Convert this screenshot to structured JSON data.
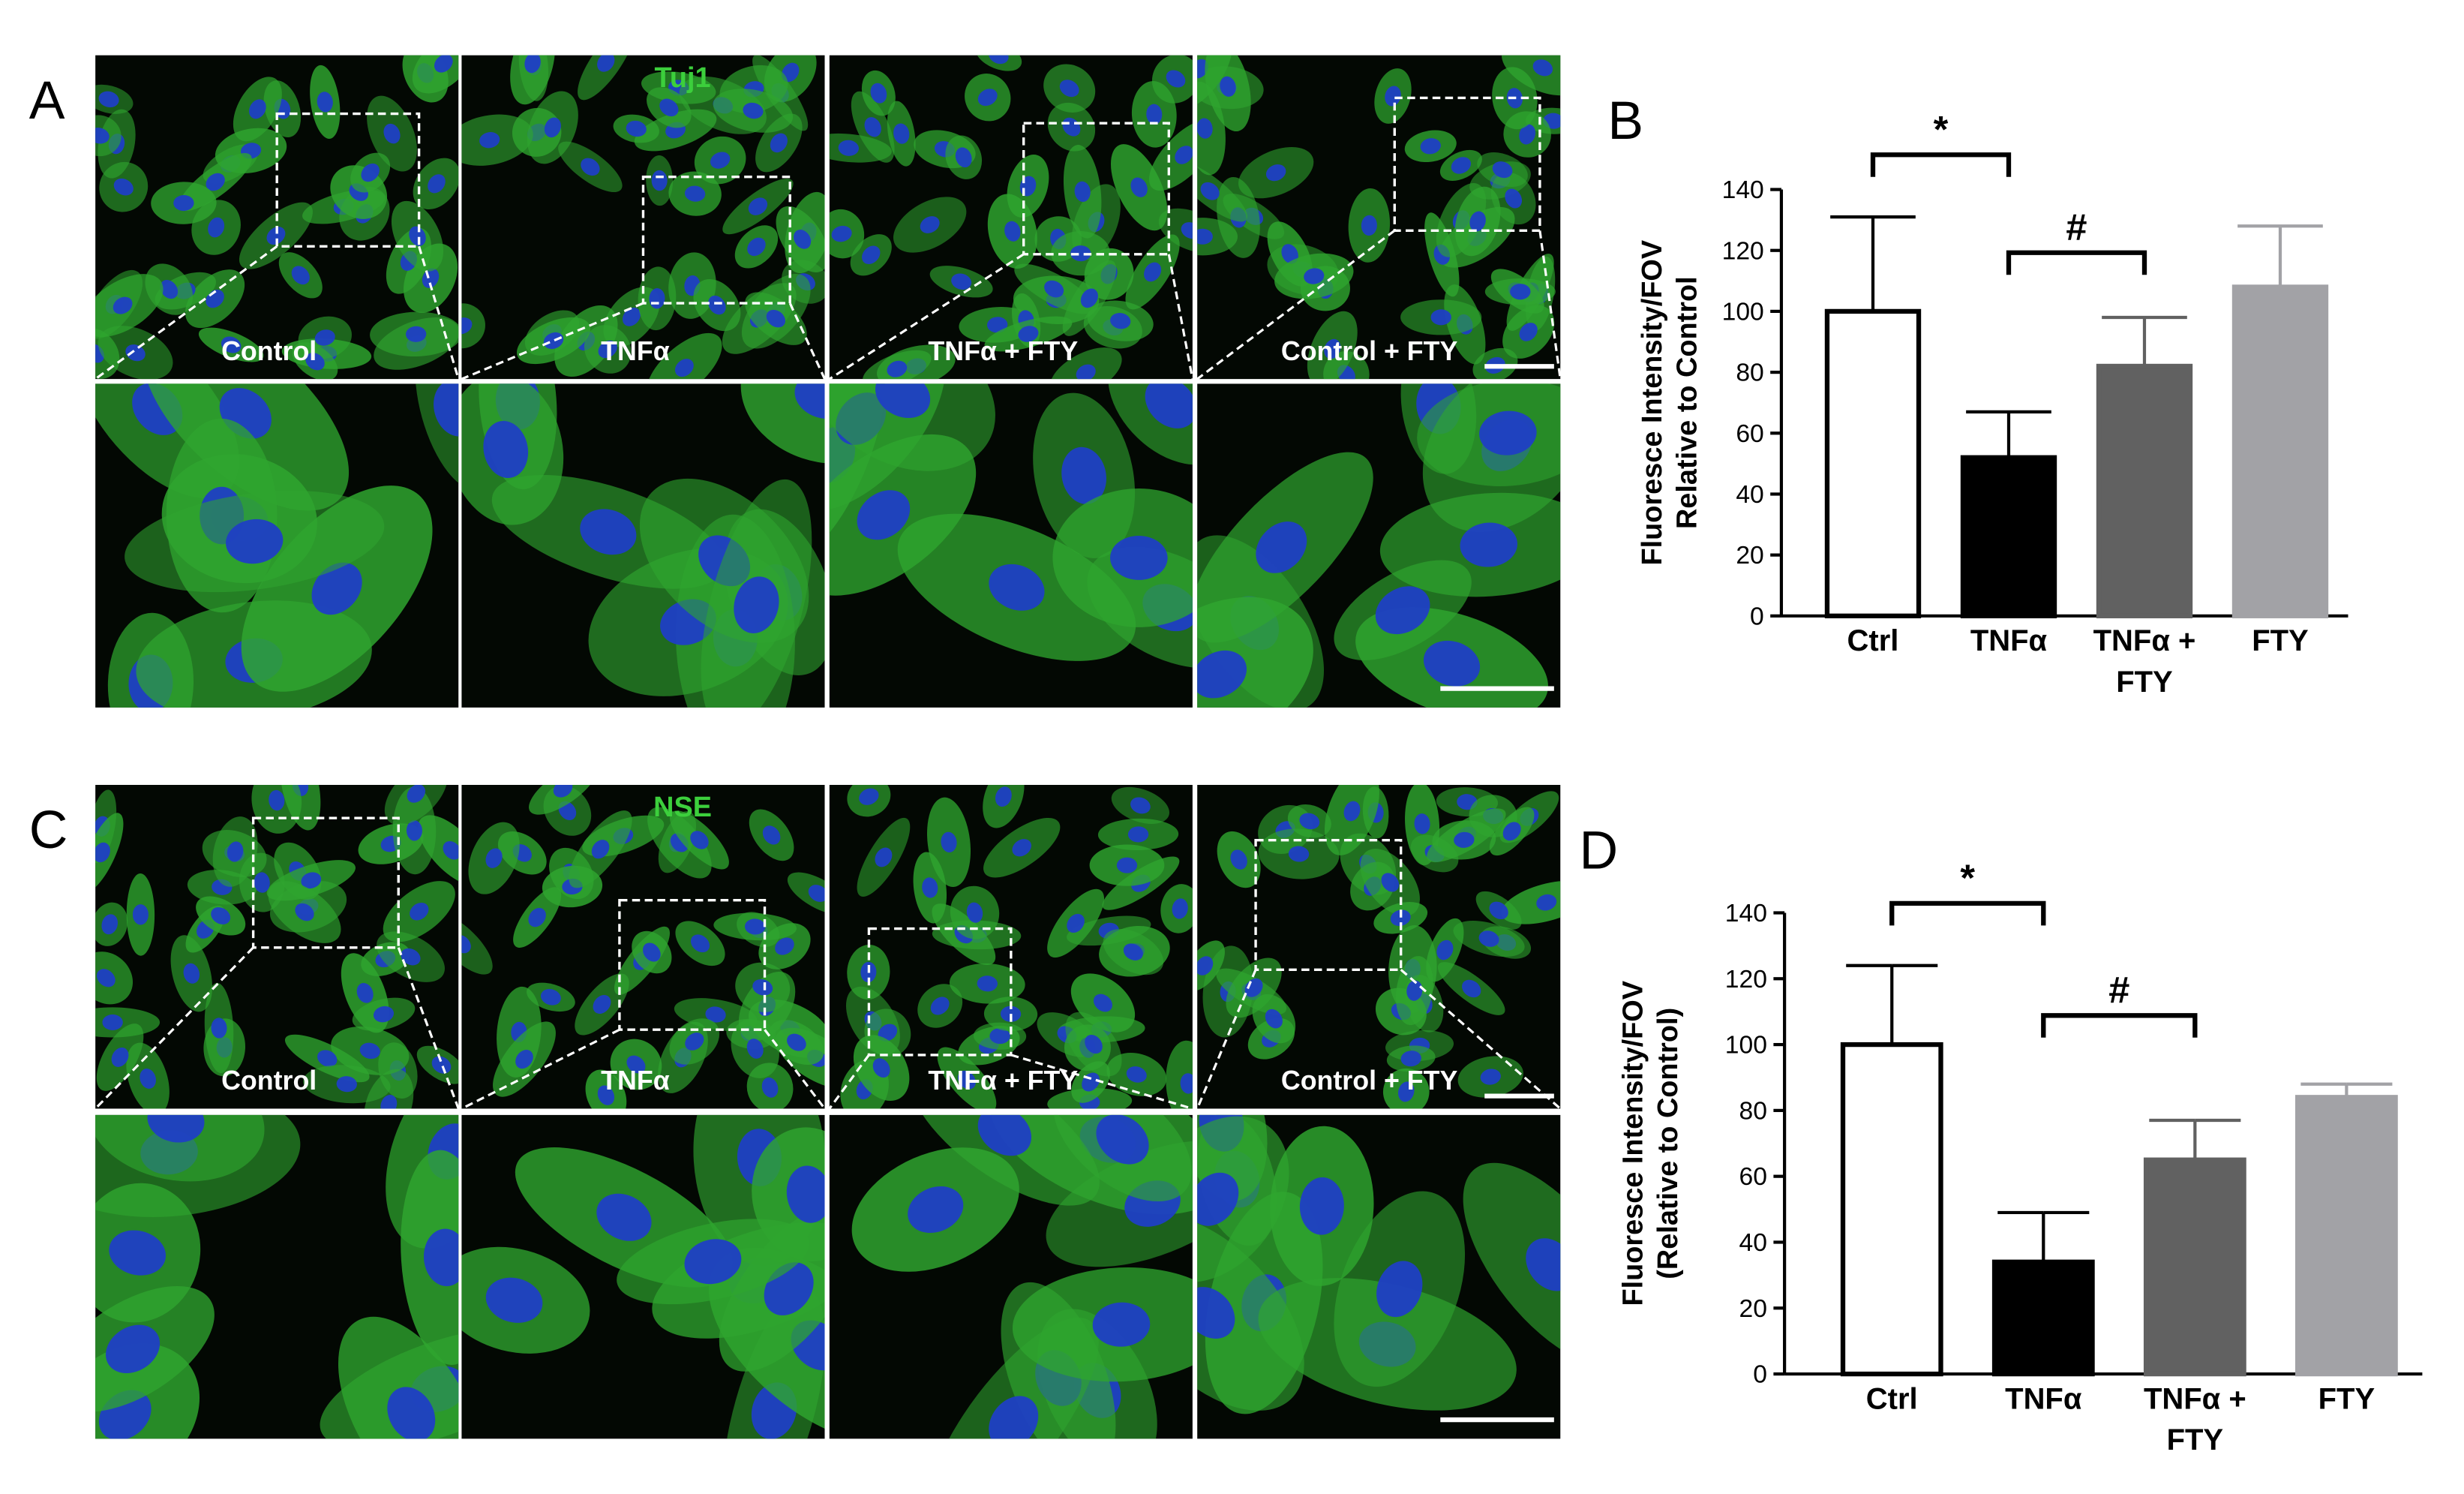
{
  "panels": [
    {
      "letter": "A",
      "stain": "Tuj1",
      "labels": [
        "Control",
        "TNFα",
        "TNFα + FTY",
        "Control + FTY"
      ]
    },
    {
      "letter": "C",
      "stain": "NSE",
      "labels": [
        "Control",
        "TNFα",
        "TNFα + FTY",
        "Control + FTY"
      ]
    }
  ],
  "chart_data": [
    {
      "type": "bar",
      "letter": "B",
      "y_label": [
        "Fluoresce Intensity/FOV",
        "Relative to Control"
      ],
      "categories": [
        "Ctrl",
        "TNFα",
        "TNFα + FTY",
        "FTY"
      ],
      "values": [
        100,
        52,
        82,
        108
      ],
      "errors": [
        31,
        15,
        16,
        20
      ],
      "colors": [
        "#ffffff",
        "#000000",
        "#616161",
        "#a2a2a6"
      ],
      "ylim": [
        0,
        140
      ],
      "yticks": [
        0,
        20,
        40,
        60,
        80,
        100,
        120,
        140
      ],
      "annotations": [
        {
          "text": "*",
          "between": [
            "Ctrl",
            "TNFα"
          ]
        },
        {
          "text": "#",
          "between": [
            "TNFα",
            "TNFα + FTY"
          ]
        }
      ]
    },
    {
      "type": "bar",
      "letter": "D",
      "y_label": [
        "Fluoresce Intensity/FOV",
        "(Relative to Control)"
      ],
      "categories": [
        "Ctrl",
        "TNFα",
        "TNFα + FTY",
        "FTY"
      ],
      "values": [
        100,
        34,
        65,
        84
      ],
      "errors": [
        24,
        15,
        12,
        4
      ],
      "colors": [
        "#ffffff",
        "#000000",
        "#616161",
        "#a2a2a6"
      ],
      "ylim": [
        0,
        140
      ],
      "yticks": [
        0,
        20,
        40,
        60,
        80,
        100,
        120,
        140
      ],
      "annotations": [
        {
          "text": "*",
          "between": [
            "Ctrl",
            "TNFα"
          ]
        },
        {
          "text": "#",
          "between": [
            "TNFα",
            "TNFα + FTY"
          ]
        }
      ]
    }
  ]
}
